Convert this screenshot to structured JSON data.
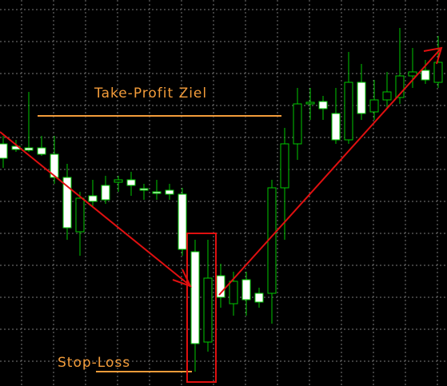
{
  "chart_data": {
    "type": "candlestick",
    "ylim": [
      0,
      483
    ],
    "grid": true,
    "up_color": "#000000",
    "down_color": "#ffffff",
    "wick_color": "#00c800",
    "open": [
      303,
      300,
      298,
      298,
      290,
      261,
      193,
      238,
      251,
      255,
      258,
      247,
      243,
      245,
      240,
      168,
      55,
      138,
      103,
      133,
      116,
      116,
      248,
      303,
      353,
      356,
      341,
      308,
      380,
      343,
      358,
      361,
      388,
      395,
      380
    ],
    "high": [
      313,
      308,
      368,
      313,
      313,
      278,
      243,
      258,
      263,
      263,
      268,
      253,
      258,
      253,
      248,
      183,
      183,
      153,
      143,
      143,
      123,
      258,
      323,
      373,
      373,
      363,
      373,
      418,
      403,
      383,
      393,
      448,
      423,
      408,
      438
    ],
    "low": [
      273,
      293,
      293,
      288,
      253,
      183,
      163,
      223,
      228,
      243,
      238,
      233,
      233,
      233,
      163,
      18,
      43,
      98,
      88,
      88,
      98,
      78,
      183,
      283,
      333,
      333,
      303,
      303,
      333,
      333,
      348,
      353,
      373,
      378,
      373
    ],
    "close": [
      285,
      296,
      295,
      290,
      261,
      198,
      235,
      231,
      233,
      258,
      251,
      245,
      241,
      240,
      171,
      53,
      135,
      111,
      131,
      108,
      105,
      248,
      303,
      353,
      355,
      347,
      308,
      380,
      341,
      358,
      368,
      388,
      393,
      383,
      405
    ],
    "annotations": [
      {
        "text": "Take-Profit Ziel",
        "value": 338,
        "color": "#f39c3a"
      },
      {
        "text": "Stop-Loss",
        "value": 18,
        "color": "#f39c3a"
      }
    ]
  }
}
